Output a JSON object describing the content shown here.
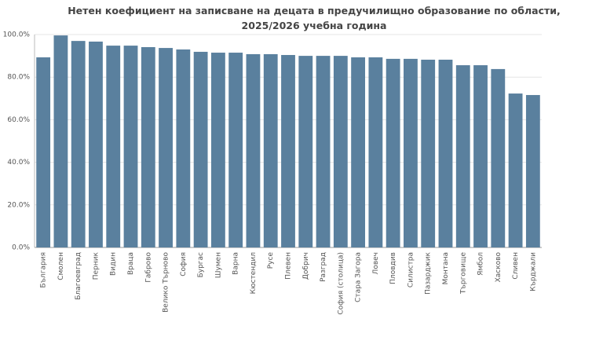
{
  "chart_data": {
    "type": "bar",
    "title": "Нетен коефициент на записване на децата в предучилищно образование по области, 2025/2026 учебна година",
    "categories": [
      "България",
      "Смолен",
      "Благоевград",
      "Перник",
      "Видин",
      "Враца",
      "Габрово",
      "Велико Търново",
      "София",
      "Бургас",
      "Шумен",
      "Варна",
      "Кюстендил",
      "Русе",
      "Плевен",
      "Добрич",
      "Разград",
      "София (столица)",
      "Стара Загора",
      "Ловеч",
      "Пловдив",
      "Силистра",
      "Пазарджик",
      "Монтана",
      "Търговище",
      "Ямбол",
      "Хасково",
      "Сливен",
      "Кърджали"
    ],
    "values": [
      89.3,
      99.6,
      97.0,
      96.7,
      94.8,
      94.8,
      94.1,
      93.7,
      93.0,
      91.9,
      91.5,
      91.5,
      90.8,
      90.8,
      90.4,
      90.0,
      90.0,
      90.0,
      89.3,
      89.3,
      88.6,
      88.6,
      88.2,
      88.2,
      85.6,
      85.6,
      83.8,
      72.3,
      71.6
    ],
    "color": "#5a809e",
    "ylim": [
      0,
      100
    ],
    "yticks": [
      {
        "value": 0,
        "label": "0.0%"
      },
      {
        "value": 20,
        "label": "20.0%"
      },
      {
        "value": 40,
        "label": "40.0%"
      },
      {
        "value": 60,
        "label": "60.0%"
      },
      {
        "value": 80,
        "label": "80.0%"
      },
      {
        "value": 100,
        "label": "100.0%"
      }
    ],
    "grid": true
  }
}
